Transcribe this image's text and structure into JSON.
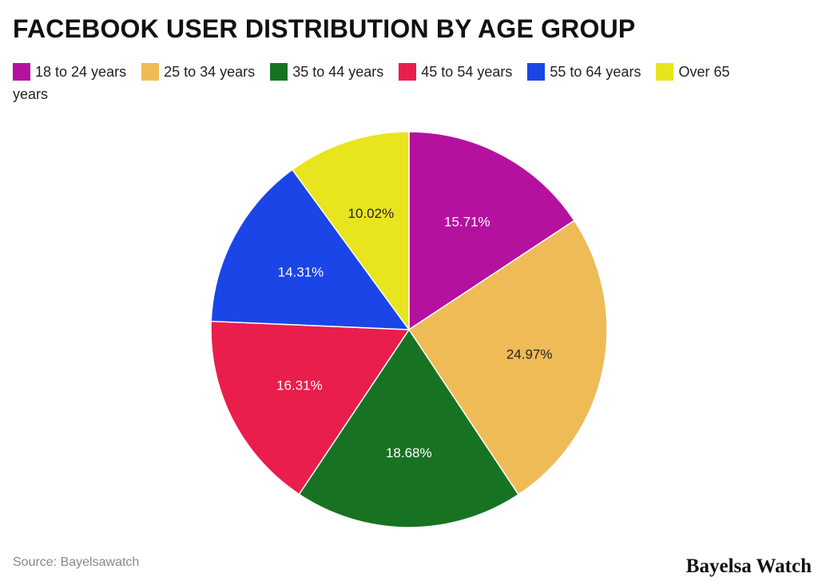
{
  "chart_data": {
    "type": "pie",
    "title": "FACEBOOK USER DISTRIBUTION BY AGE GROUP",
    "categories": [
      "18 to 24 years",
      "25 to 34 years",
      "35 to 44 years",
      "45 to 54 years",
      "55 to 64 years",
      "Over 65 years"
    ],
    "values": [
      15.71,
      24.97,
      18.68,
      16.31,
      14.31,
      10.02
    ],
    "labels": [
      "15.71%",
      "24.97%",
      "18.68%",
      "16.31%",
      "14.31%",
      "10.02%"
    ],
    "colors": [
      "#b5119f",
      "#efbb57",
      "#177322",
      "#e91e4c",
      "#1b45e6",
      "#e8e41e"
    ],
    "legend_position": "top-left",
    "start": "top, clockwise"
  },
  "source": "Source: Bayelsawatch",
  "watermark": "Bayelsa Watch"
}
